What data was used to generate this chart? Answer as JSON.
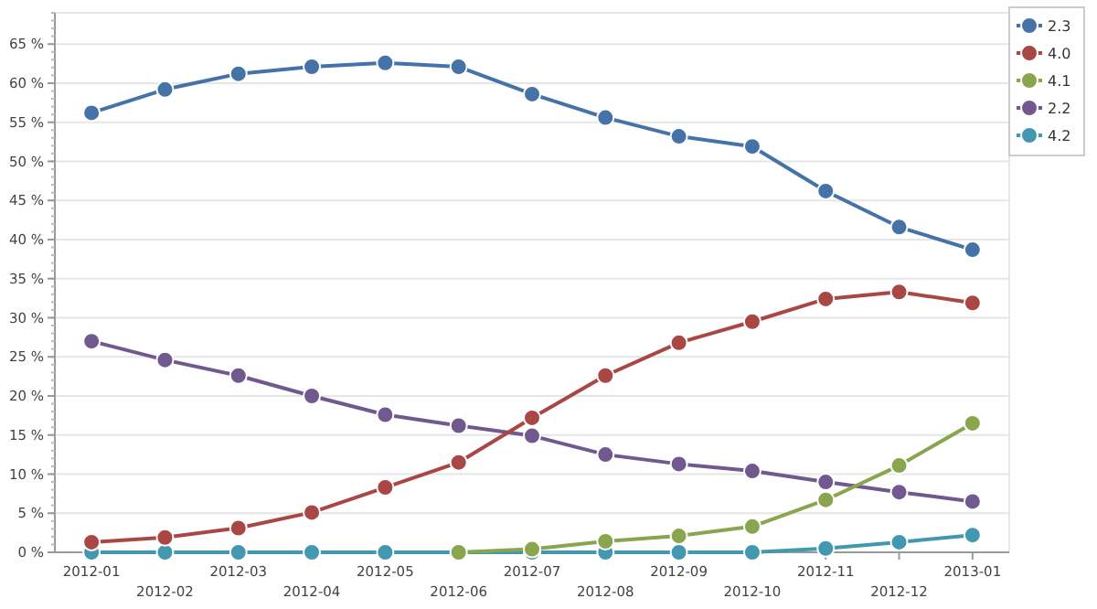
{
  "chart_data": {
    "type": "line",
    "categories": [
      "2012-01",
      "2012-02",
      "2012-03",
      "2012-04",
      "2012-05",
      "2012-06",
      "2012-07",
      "2012-08",
      "2012-09",
      "2012-10",
      "2012-11",
      "2012-12",
      "2013-01"
    ],
    "ylim": [
      0,
      69
    ],
    "yticks": [
      {
        "value": 0,
        "label": "0 %"
      },
      {
        "value": 5,
        "label": "5 %"
      },
      {
        "value": 10,
        "label": "10 %"
      },
      {
        "value": 15,
        "label": "15 %"
      },
      {
        "value": 20,
        "label": "20 %"
      },
      {
        "value": 25,
        "label": "25 %"
      },
      {
        "value": 30,
        "label": "30 %"
      },
      {
        "value": 35,
        "label": "35 %"
      },
      {
        "value": 40,
        "label": "40 %"
      },
      {
        "value": 45,
        "label": "45 %"
      },
      {
        "value": 50,
        "label": "50 %"
      },
      {
        "value": 55,
        "label": "55 %"
      },
      {
        "value": 60,
        "label": "60 %"
      },
      {
        "value": 65,
        "label": "65 %"
      }
    ],
    "grid": "y",
    "legend": "top right",
    "marker": "circle",
    "line_style": "solid",
    "series": [
      {
        "name": "2.3",
        "color": "#4572a7",
        "values": [
          56.2,
          59.2,
          61.2,
          62.1,
          62.6,
          62.1,
          58.6,
          55.6,
          53.2,
          51.9,
          46.2,
          41.6,
          38.7
        ]
      },
      {
        "name": "4.0",
        "color": "#aa4643",
        "values": [
          1.3,
          1.9,
          3.1,
          5.1,
          8.3,
          11.5,
          17.2,
          22.6,
          26.8,
          29.5,
          32.4,
          33.3,
          31.9
        ]
      },
      {
        "name": "4.1",
        "color": "#89a54e",
        "values": [
          null,
          null,
          null,
          null,
          null,
          0,
          0.4,
          1.4,
          2.1,
          3.3,
          6.7,
          11.1,
          16.5
        ]
      },
      {
        "name": "2.2",
        "color": "#71588f",
        "values": [
          27.0,
          24.6,
          22.6,
          20.0,
          17.6,
          16.2,
          14.9,
          12.5,
          11.3,
          10.4,
          9.0,
          7.7,
          6.5
        ]
      },
      {
        "name": "4.2",
        "color": "#4198af",
        "values": [
          0,
          0,
          0,
          0,
          0,
          0,
          0,
          0,
          0,
          0,
          0.5,
          1.3,
          2.2
        ]
      }
    ]
  }
}
